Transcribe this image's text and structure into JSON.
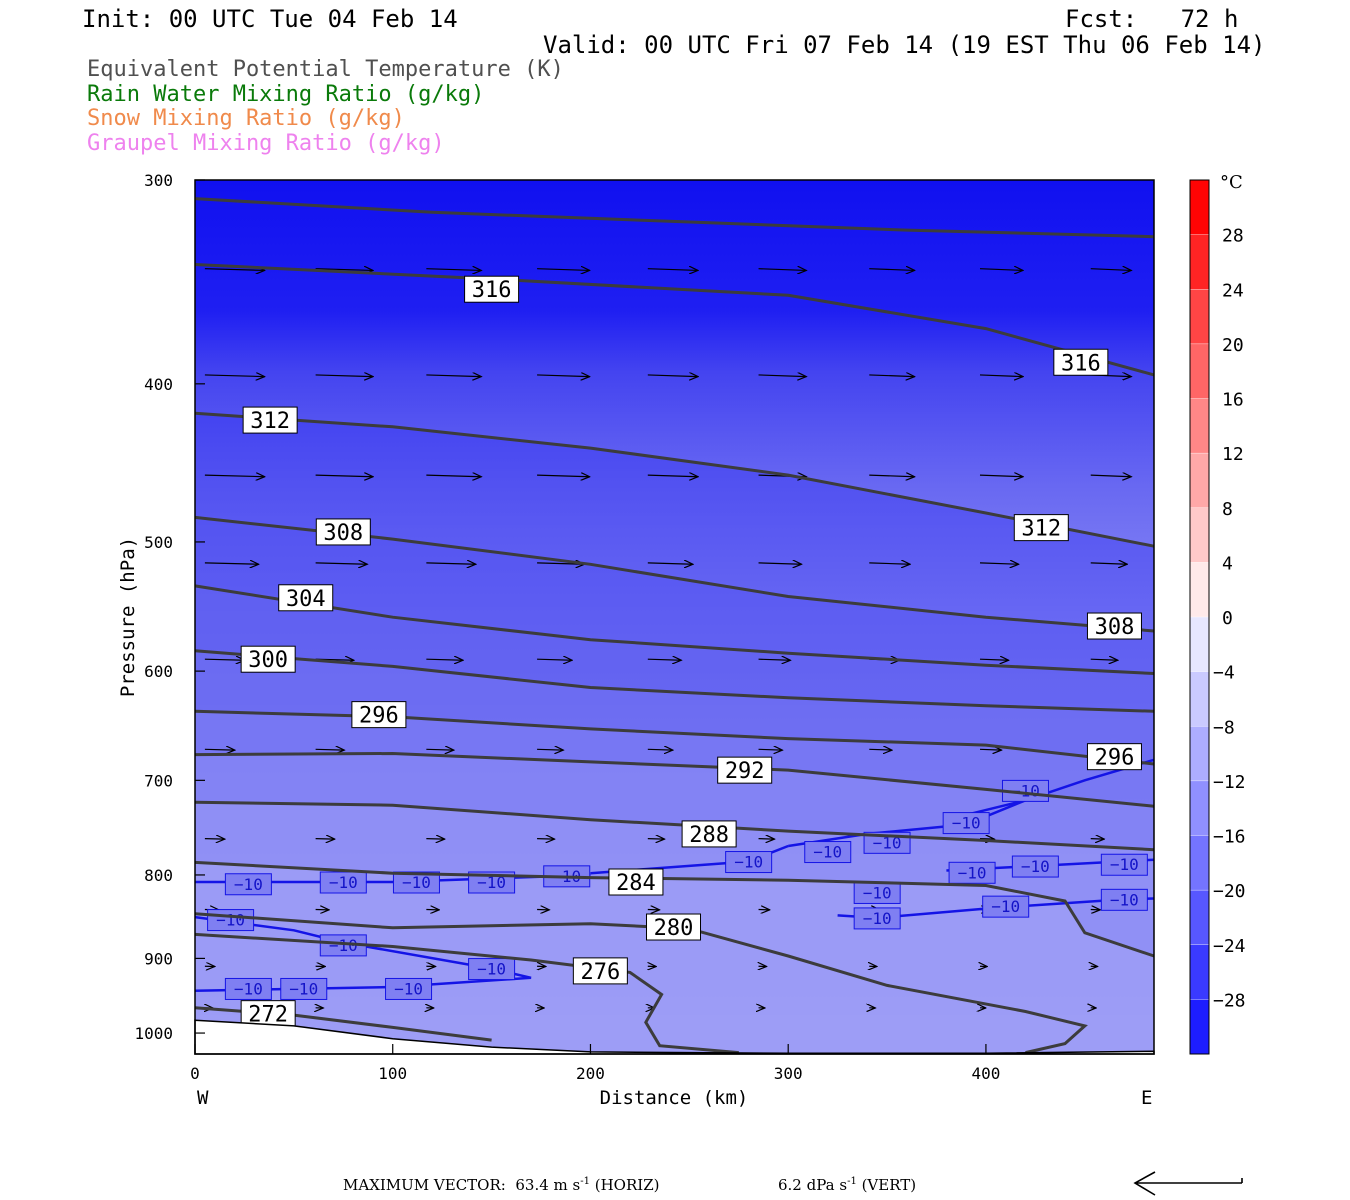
{
  "header": {
    "init": "Init: 00 UTC Tue 04 Feb 14",
    "fcst": "Fcst:   72 h",
    "valid": "Valid: 00 UTC Fri 07 Feb 14 (19 EST Thu 06 Feb 14)"
  },
  "legend": [
    {
      "label": "Equivalent Potential Temperature (K)",
      "color": "#505050"
    },
    {
      "label": "Rain Water Mixing Ratio (g/kg)",
      "color": "#0a7a0a"
    },
    {
      "label": "Snow Mixing Ratio (g/kg)",
      "color": "#f08a4b"
    },
    {
      "label": "Graupel Mixing Ratio (g/kg)",
      "color": "#ee82ee"
    }
  ],
  "footer": {
    "max_vector": "MAXIMUM VECTOR:  63.4 m s",
    "horiz": " (HORIZ)",
    "vert_value": "6.2 dPa s",
    "vert": " (VERT)",
    "exp": "-1"
  },
  "chart_data": {
    "type": "cross-section",
    "xlabel": "Distance (km)",
    "ylabel": "Pressure (hPa)",
    "xlim": [
      0,
      485
    ],
    "ylim": [
      1030,
      300
    ],
    "y_scale": "log",
    "x_ticks": [
      0,
      100,
      200,
      300,
      400
    ],
    "y_ticks": [
      300,
      400,
      500,
      600,
      700,
      800,
      900,
      1000
    ],
    "x_end_labels": {
      "left": "W",
      "right": "E"
    },
    "colorbar": {
      "unit": "°C",
      "ticks": [
        28,
        24,
        20,
        16,
        12,
        8,
        4,
        0,
        -4,
        -8,
        -12,
        -16,
        -20,
        -24,
        -28
      ],
      "range": [
        -32,
        32
      ],
      "interval": 4
    },
    "theta_e_contours": [
      {
        "value": 316,
        "label_x": 150,
        "label_p": 350,
        "points": [
          [
            0,
            308
          ],
          [
            120,
            314
          ],
          [
            240,
            318
          ],
          [
            360,
            322
          ],
          [
            485,
            325
          ]
        ]
      },
      {
        "value": 316,
        "label_x": 448,
        "label_p": 388,
        "points": [
          [
            0,
            338
          ],
          [
            150,
            345
          ],
          [
            300,
            353
          ],
          [
            400,
            370
          ],
          [
            485,
            395
          ]
        ]
      },
      {
        "value": 312,
        "label_x": 38,
        "label_p": 421,
        "points": [
          [
            0,
            417
          ],
          [
            100,
            425
          ],
          [
            200,
            438
          ],
          [
            300,
            455
          ],
          [
            400,
            480
          ],
          [
            485,
            503
          ]
        ]
      },
      {
        "value": 312,
        "label_x": 428,
        "label_p": 490,
        "points": [
          [
            0,
            417
          ],
          [
            100,
            425
          ],
          [
            200,
            438
          ],
          [
            300,
            455
          ],
          [
            400,
            480
          ],
          [
            485,
            503
          ]
        ]
      },
      {
        "value": 308,
        "label_x": 75,
        "label_p": 493,
        "points": [
          [
            0,
            483
          ],
          [
            100,
            498
          ],
          [
            200,
            516
          ],
          [
            300,
            540
          ],
          [
            400,
            556
          ],
          [
            485,
            567
          ]
        ]
      },
      {
        "value": 308,
        "label_x": 465,
        "label_p": 563,
        "points": [
          [
            0,
            483
          ],
          [
            100,
            498
          ],
          [
            200,
            516
          ],
          [
            300,
            540
          ],
          [
            400,
            556
          ],
          [
            485,
            567
          ]
        ]
      },
      {
        "value": 304,
        "label_x": 56,
        "label_p": 541,
        "points": [
          [
            0,
            532
          ],
          [
            100,
            556
          ],
          [
            200,
            574
          ],
          [
            300,
            585
          ],
          [
            400,
            595
          ],
          [
            485,
            602
          ]
        ]
      },
      {
        "value": 300,
        "label_x": 37,
        "label_p": 590,
        "points": [
          [
            0,
            583
          ],
          [
            100,
            596
          ],
          [
            200,
            614
          ],
          [
            300,
            623
          ],
          [
            400,
            630
          ],
          [
            485,
            635
          ]
        ]
      },
      {
        "value": 296,
        "label_x": 93,
        "label_p": 638,
        "points": [
          [
            0,
            635
          ],
          [
            100,
            640
          ],
          [
            200,
            651
          ],
          [
            300,
            660
          ],
          [
            400,
            666
          ],
          [
            485,
            684
          ]
        ]
      },
      {
        "value": 296,
        "label_x": 465,
        "label_p": 677,
        "points": [
          [
            0,
            635
          ],
          [
            100,
            640
          ],
          [
            200,
            651
          ],
          [
            300,
            660
          ],
          [
            400,
            666
          ],
          [
            485,
            684
          ]
        ]
      },
      {
        "value": 292,
        "label_x": 278,
        "label_p": 690,
        "points": [
          [
            0,
            675
          ],
          [
            100,
            674
          ],
          [
            200,
            682
          ],
          [
            300,
            690
          ],
          [
            400,
            709
          ],
          [
            485,
            726
          ]
        ]
      },
      {
        "value": 288,
        "label_x": 260,
        "label_p": 755,
        "points": [
          [
            0,
            722
          ],
          [
            100,
            725
          ],
          [
            200,
            740
          ],
          [
            300,
            752
          ],
          [
            400,
            762
          ],
          [
            485,
            772
          ]
        ]
      },
      {
        "value": 284,
        "label_x": 223,
        "label_p": 808,
        "points": [
          [
            0,
            786
          ],
          [
            100,
            798
          ],
          [
            200,
            803
          ],
          [
            300,
            806
          ],
          [
            400,
            812
          ],
          [
            440,
            830
          ],
          [
            450,
            868
          ],
          [
            485,
            897
          ]
        ]
      },
      {
        "value": 280,
        "label_x": 242,
        "label_p": 861,
        "points": [
          [
            0,
            845
          ],
          [
            100,
            862
          ],
          [
            200,
            857
          ],
          [
            250,
            863
          ],
          [
            300,
            897
          ],
          [
            350,
            935
          ],
          [
            420,
            970
          ],
          [
            450,
            990
          ],
          [
            440,
            1015
          ],
          [
            420,
            1028
          ]
        ]
      },
      {
        "value": 276,
        "label_x": 205,
        "label_p": 916,
        "points": [
          [
            0,
            870
          ],
          [
            100,
            885
          ],
          [
            170,
            902
          ],
          [
            220,
            918
          ],
          [
            236,
            947
          ],
          [
            228,
            985
          ],
          [
            235,
            1018
          ],
          [
            275,
            1028
          ]
        ]
      },
      {
        "value": 272,
        "label_x": 37,
        "label_p": 973,
        "points": [
          [
            0,
            965
          ],
          [
            50,
            975
          ],
          [
            100,
            992
          ],
          [
            150,
            1010
          ]
        ]
      }
    ],
    "temperature_contours": [
      {
        "value": -10,
        "label_x": 465,
        "label_p": 677,
        "points": [
          [
            420,
            720
          ],
          [
            450,
            700
          ],
          [
            485,
            680
          ]
        ]
      },
      {
        "value": -10,
        "label_x": 420,
        "label_p": 710,
        "points": [
          [
            380,
            740
          ],
          [
            420,
            720
          ]
        ]
      },
      {
        "value": -10,
        "label_x": 390,
        "label_p": 743,
        "points": [
          [
            340,
            755
          ],
          [
            390,
            745
          ],
          [
            420,
            720
          ]
        ]
      },
      {
        "value": -10,
        "label_x": 350,
        "label_p": 764,
        "points": [
          [
            300,
            768
          ],
          [
            340,
            755
          ]
        ]
      },
      {
        "value": -10,
        "label_x": 320,
        "label_p": 774,
        "points": [
          [
            300,
            768
          ]
        ]
      },
      {
        "value": -10,
        "label_x": 280,
        "label_p": 785,
        "points": [
          [
            200,
            798
          ],
          [
            280,
            785
          ],
          [
            300,
            768
          ]
        ]
      },
      {
        "value": -10,
        "label_x": 425,
        "label_p": 790,
        "points": [
          [
            380,
            795
          ],
          [
            425,
            790
          ],
          [
            485,
            783
          ]
        ]
      },
      {
        "value": -10,
        "label_x": 393,
        "label_p": 797,
        "points": [
          [
            385,
            797
          ],
          [
            393,
            797
          ]
        ]
      },
      {
        "value": -10,
        "label_x": 470,
        "label_p": 788,
        "points": [
          [
            485,
            783
          ]
        ]
      },
      {
        "value": -10,
        "label_x": 345,
        "label_p": 820,
        "points": [
          [
            345,
            820
          ]
        ]
      },
      {
        "value": -10,
        "label_x": 345,
        "label_p": 850,
        "points": [
          [
            325,
            847
          ],
          [
            345,
            850
          ],
          [
            405,
            838
          ],
          [
            470,
            828
          ],
          [
            485,
            827
          ]
        ]
      },
      {
        "value": -10,
        "label_x": 410,
        "label_p": 836,
        "points": [
          [
            405,
            838
          ]
        ]
      },
      {
        "value": -10,
        "label_x": 470,
        "label_p": 828,
        "points": [
          [
            470,
            828
          ]
        ]
      },
      {
        "value": -10,
        "label_x": 27,
        "label_p": 810,
        "points": [
          [
            0,
            808
          ],
          [
            100,
            808
          ],
          [
            200,
            800
          ]
        ]
      },
      {
        "value": -10,
        "label_x": 75,
        "label_p": 808,
        "points": [
          [
            75,
            808
          ]
        ]
      },
      {
        "value": -10,
        "label_x": 112,
        "label_p": 808,
        "points": [
          [
            112,
            808
          ]
        ]
      },
      {
        "value": -10,
        "label_x": 150,
        "label_p": 808,
        "points": [
          [
            150,
            808
          ]
        ]
      },
      {
        "value": -10,
        "label_x": 188,
        "label_p": 801,
        "points": [
          [
            188,
            801
          ]
        ]
      },
      {
        "value": -10,
        "label_x": 18,
        "label_p": 852,
        "points": [
          [
            0,
            849
          ],
          [
            50,
            865
          ],
          [
            75,
            880
          ],
          [
            150,
            913
          ],
          [
            170,
            925
          ]
        ]
      },
      {
        "value": -10,
        "label_x": 75,
        "label_p": 883,
        "points": [
          [
            75,
            883
          ]
        ]
      },
      {
        "value": -10,
        "label_x": 150,
        "label_p": 913,
        "points": [
          [
            150,
            913
          ]
        ]
      },
      {
        "value": -10,
        "label_x": 27,
        "label_p": 939,
        "points": [
          [
            0,
            942
          ],
          [
            100,
            937
          ],
          [
            170,
            925
          ]
        ]
      },
      {
        "value": -10,
        "label_x": 55,
        "label_p": 939,
        "points": [
          [
            55,
            939
          ]
        ]
      },
      {
        "value": -10,
        "label_x": 108,
        "label_p": 939,
        "points": [
          [
            108,
            939
          ]
        ]
      }
    ],
    "wind_vectors_note": "horizontal-vertical circulation vectors, max 63.4 m/s horizontal, 6.2 dPa/s vertical"
  }
}
